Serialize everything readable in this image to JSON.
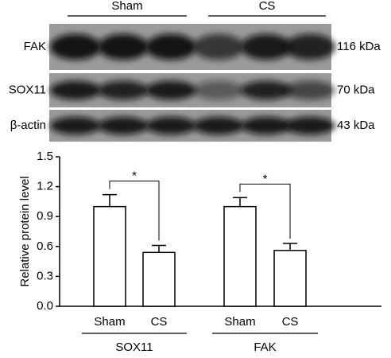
{
  "blot": {
    "groups": [
      "Sham",
      "CS"
    ],
    "rows": [
      {
        "label": "FAK",
        "size": "116 kDa"
      },
      {
        "label": "SOX11",
        "size": "70 kDa"
      },
      {
        "label": "β-actin",
        "size": "43 kDa"
      }
    ]
  },
  "chart_data": {
    "type": "bar",
    "ylabel": "Relative protein level",
    "categories": [
      "Sham",
      "CS",
      "Sham",
      "CS"
    ],
    "groups": [
      "SOX11",
      "FAK"
    ],
    "values": [
      1.0,
      0.54,
      1.0,
      0.56
    ],
    "errors": [
      0.12,
      0.07,
      0.09,
      0.07
    ],
    "annotations": [
      "*",
      "*"
    ],
    "ylim": [
      0,
      1.5
    ],
    "yticks": [
      {
        "value": 0,
        "label": "0.0"
      },
      0.3,
      0.6,
      0.9,
      1.2,
      1.5
    ],
    "color": "#ffffff"
  }
}
